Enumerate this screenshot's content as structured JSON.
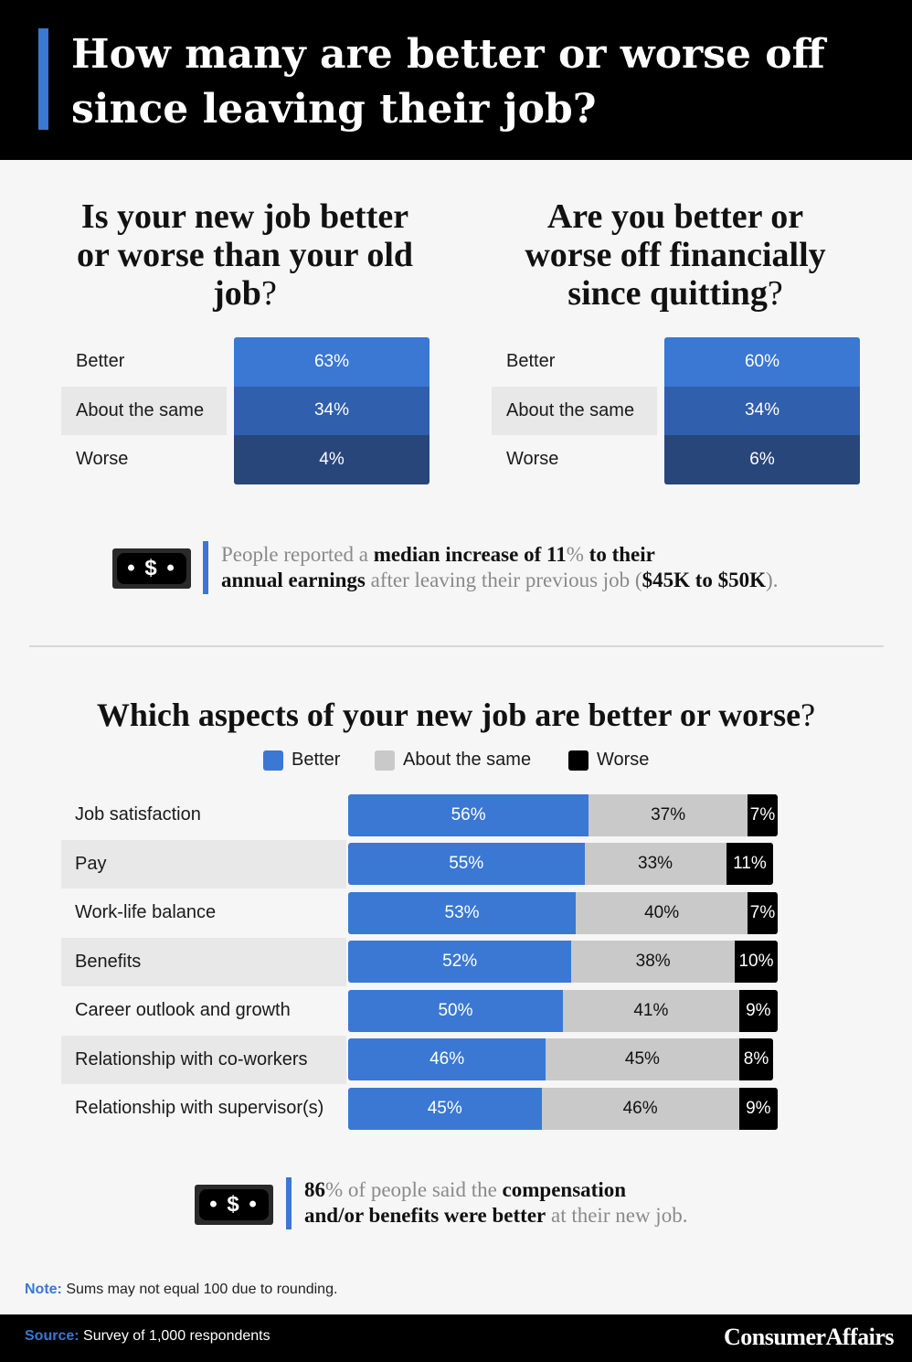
{
  "header": {
    "title": "How many are better or worse off since leaving their job?"
  },
  "colors": {
    "better": "#3a78d3",
    "same_mini": "#2f5fad",
    "worse_mini": "#28467a",
    "same": "#c9c9c9",
    "worse": "#000000"
  },
  "chart_data": [
    {
      "type": "bar",
      "title": "Is your new job better or worse than your old job",
      "title_mark": "?",
      "categories": [
        "Better",
        "About the same",
        "Worse"
      ],
      "values": [
        63,
        34,
        4
      ],
      "labels": [
        "63%",
        "34%",
        "4%"
      ]
    },
    {
      "type": "bar",
      "title": "Are you better or worse off financially since quitting",
      "title_mark": "?",
      "categories": [
        "Better",
        "About the same",
        "Worse"
      ],
      "values": [
        60,
        34,
        6
      ],
      "labels": [
        "60%",
        "34%",
        "6%"
      ]
    },
    {
      "type": "bar",
      "stacked": true,
      "title": "Which aspects of your new job are better or worse",
      "title_mark": "?",
      "legend": [
        "Better",
        "About the same",
        "Worse"
      ],
      "legend_position": "top-center",
      "categories": [
        "Job satisfaction",
        "Pay",
        "Work-life balance",
        "Benefits",
        "Career outlook and growth",
        "Relationship with co-workers",
        "Relationship with supervisor(s)"
      ],
      "series": [
        {
          "name": "Better",
          "values": [
            56,
            55,
            53,
            52,
            50,
            46,
            45
          ],
          "labels": [
            "56%",
            "55%",
            "53%",
            "52%",
            "50%",
            "46%",
            "45%"
          ]
        },
        {
          "name": "About the same",
          "values": [
            37,
            33,
            40,
            38,
            41,
            45,
            46
          ],
          "labels": [
            "37%",
            "33%",
            "40%",
            "38%",
            "41%",
            "45%",
            "46%"
          ]
        },
        {
          "name": "Worse",
          "values": [
            7,
            11,
            7,
            10,
            9,
            8,
            9
          ],
          "labels": [
            "7%",
            "11%",
            "7%",
            "10%",
            "9%",
            "8%",
            "9%"
          ]
        }
      ]
    }
  ],
  "callouts": {
    "first": {
      "t1": "People reported a ",
      "t2": "median increase of 11",
      "t3": "%",
      "t4": " to their",
      "t5": "annual earnings",
      "t6": " after leaving their previous job (",
      "t7": "$45K to $50K",
      "t8": ")."
    },
    "second": {
      "t1": "86",
      "t2": "%",
      "t3": " of people said the ",
      "t4": "compensation",
      "t5": "and/or benefits were better",
      "t6": " at their new job."
    },
    "icon_label": "• $ •"
  },
  "note": {
    "label": "Note:",
    "text": " Sums may not equal 100 due to rounding."
  },
  "footer": {
    "source_label": "Source:",
    "source_text": " Survey of 1,000 respondents",
    "brand": "ConsumerAffairs"
  }
}
